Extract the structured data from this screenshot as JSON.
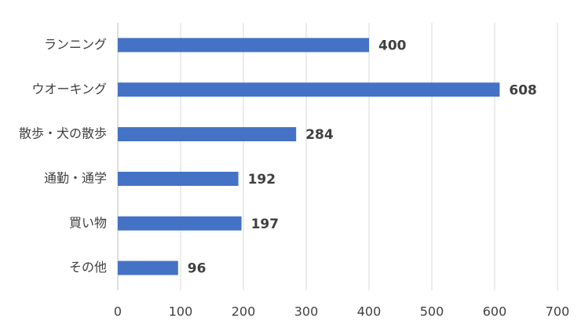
{
  "chart_data": {
    "type": "bar",
    "orientation": "horizontal",
    "categories": [
      "ランニング",
      "ウオーキング",
      "散歩・犬の散歩",
      "通勤・通学",
      "買い物",
      "その他"
    ],
    "values": [
      400,
      608,
      284,
      192,
      197,
      96
    ],
    "color": "#4472c4",
    "xlim": [
      0,
      700
    ],
    "xticks": [
      0,
      100,
      200,
      300,
      400,
      500,
      600,
      700
    ],
    "grid": true
  }
}
